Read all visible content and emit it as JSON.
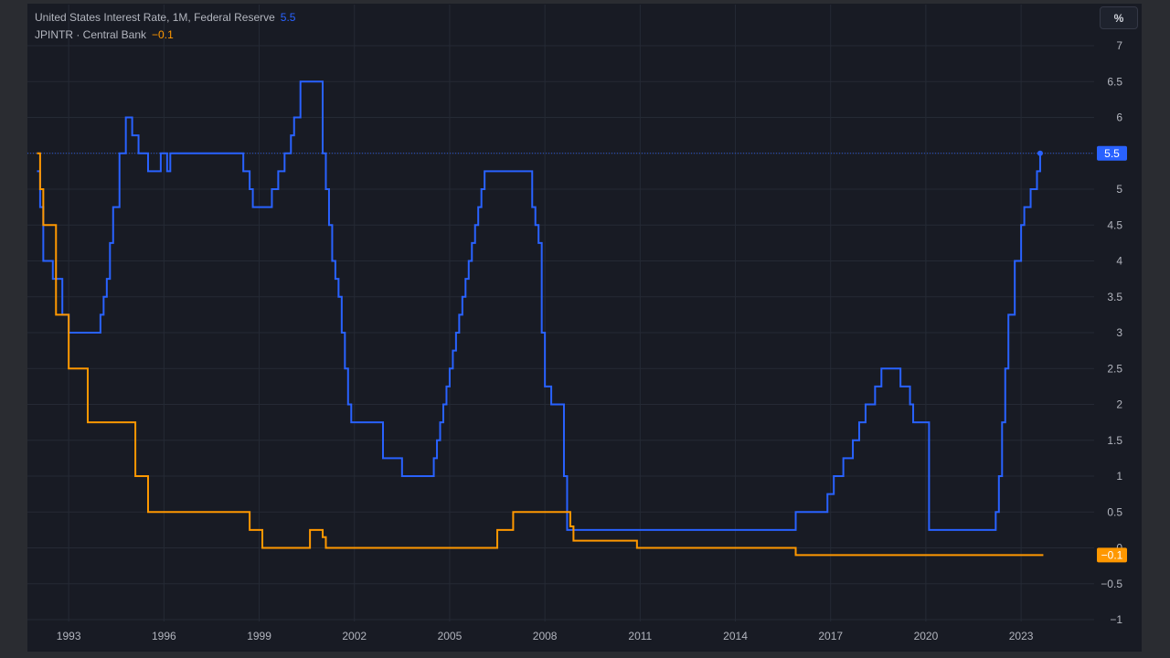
{
  "chart_data": {
    "type": "line",
    "unit_label": "%",
    "y_ticks": [
      7,
      6.5,
      6,
      5.5,
      5,
      4.5,
      4,
      3.5,
      3,
      2.5,
      2,
      1.5,
      1,
      0.5,
      0,
      -0.5,
      -1
    ],
    "y_tick_labels": [
      "7",
      "6.5",
      "6",
      "5.5",
      "5",
      "4.5",
      "4",
      "3.5",
      "3",
      "2.5",
      "2",
      "1.5",
      "1",
      "0.5",
      "0",
      "−0.5",
      "−1"
    ],
    "x_ticks": [
      1993,
      1996,
      1999,
      2002,
      2005,
      2008,
      2011,
      2014,
      2017,
      2020,
      2023
    ],
    "ylim": [
      -1,
      7
    ],
    "xlim": [
      1991.7,
      2025.3
    ],
    "grid": true,
    "series": [
      {
        "name": "United States Interest Rate, 1M, Federal Reserve",
        "last_value": "5.5",
        "color": "#2962ff",
        "x": [
          1992.0,
          1992.1,
          1992.2,
          1992.5,
          1992.8,
          1993.0,
          1994.0,
          1994.1,
          1994.2,
          1994.3,
          1994.4,
          1994.6,
          1994.8,
          1995.0,
          1995.2,
          1995.5,
          1995.9,
          1996.1,
          1996.2,
          1997.0,
          1997.3,
          1998.5,
          1998.7,
          1998.8,
          1998.9,
          1999.4,
          1999.6,
          1999.8,
          2000.0,
          2000.1,
          2000.3,
          2000.4,
          2000.5,
          2001.0,
          2001.1,
          2001.2,
          2001.3,
          2001.4,
          2001.5,
          2001.6,
          2001.7,
          2001.8,
          2001.9,
          2002.0,
          2002.9,
          2003.5,
          2004.5,
          2004.6,
          2004.7,
          2004.8,
          2004.9,
          2005.0,
          2005.1,
          2005.2,
          2005.3,
          2005.4,
          2005.5,
          2005.6,
          2005.7,
          2005.8,
          2005.9,
          2006.0,
          2006.1,
          2006.2,
          2006.4,
          2007.6,
          2007.7,
          2007.8,
          2007.9,
          2008.0,
          2008.2,
          2008.3,
          2008.6,
          2008.7,
          2008.9,
          2015.9,
          2016.9,
          2017.1,
          2017.4,
          2017.7,
          2017.9,
          2018.1,
          2018.4,
          2018.6,
          2019.2,
          2019.5,
          2019.6,
          2019.8,
          2020.1,
          2020.2,
          2022.2,
          2022.3,
          2022.4,
          2022.5,
          2022.6,
          2022.8,
          2023.0,
          2023.1,
          2023.3,
          2023.5,
          2023.6
        ],
        "y": [
          5.25,
          4.75,
          4.0,
          3.75,
          3.25,
          3.0,
          3.25,
          3.5,
          3.75,
          4.25,
          4.75,
          5.5,
          6.0,
          5.75,
          5.5,
          5.25,
          5.5,
          5.25,
          5.5,
          5.5,
          5.5,
          5.25,
          5.0,
          4.75,
          4.75,
          5.0,
          5.25,
          5.5,
          5.75,
          6.0,
          6.5,
          6.5,
          6.5,
          5.5,
          5.0,
          4.5,
          4.0,
          3.75,
          3.5,
          3.0,
          2.5,
          2.0,
          1.75,
          1.75,
          1.25,
          1.0,
          1.25,
          1.5,
          1.75,
          2.0,
          2.25,
          2.5,
          2.75,
          3.0,
          3.25,
          3.5,
          3.75,
          4.0,
          4.25,
          4.5,
          4.75,
          5.0,
          5.25,
          5.25,
          5.25,
          4.75,
          4.5,
          4.25,
          3.0,
          2.25,
          2.0,
          2.0,
          1.0,
          0.25,
          0.25,
          0.5,
          0.75,
          1.0,
          1.25,
          1.5,
          1.75,
          2.0,
          2.25,
          2.5,
          2.25,
          2.0,
          1.75,
          1.75,
          0.25,
          0.25,
          0.5,
          1.0,
          1.75,
          2.5,
          3.25,
          4.0,
          4.5,
          4.75,
          5.0,
          5.25,
          5.5
        ]
      },
      {
        "name": "JPINTR · Central Bank",
        "last_value": "−0.1",
        "color": "#ff9800",
        "x": [
          1992.0,
          1992.1,
          1992.2,
          1992.6,
          1993.0,
          1993.6,
          1995.1,
          1995.5,
          1996.2,
          1996.5,
          1998.7,
          1999.1,
          2000.6,
          2001.0,
          2001.1,
          2001.2,
          2006.5,
          2007.0,
          2008.8,
          2008.9,
          2010.9,
          2015.9,
          2023.7
        ],
        "y": [
          5.5,
          5.0,
          4.5,
          3.25,
          2.5,
          1.75,
          1.0,
          0.5,
          0.5,
          0.5,
          0.25,
          0.0,
          0.25,
          0.15,
          0.0,
          0.0,
          0.25,
          0.5,
          0.3,
          0.1,
          0.0,
          -0.1,
          -0.1
        ]
      }
    ]
  }
}
